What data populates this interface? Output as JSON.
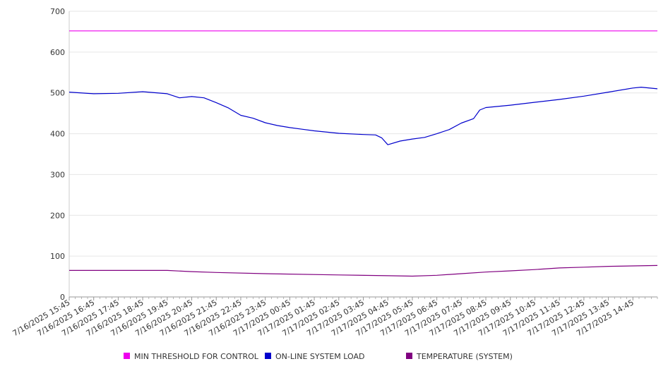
{
  "chart_data": {
    "type": "line",
    "title": "",
    "xlabel": "",
    "ylabel": "",
    "ylim": [
      0,
      700
    ],
    "yticks": [
      0,
      100,
      200,
      300,
      400,
      500,
      600,
      700
    ],
    "grid": true,
    "legend_position": "bottom",
    "x_tick_labels": [
      "7/16/2025 15:45",
      "7/16/2025 16:45",
      "7/16/2025 17:45",
      "7/16/2025 18:45",
      "7/16/2025 19:45",
      "7/16/2025 20:45",
      "7/16/2025 21:45",
      "7/16/2025 22:45",
      "7/16/2025 23:45",
      "7/17/2025 00:45",
      "7/17/2025 01:45",
      "7/17/2025 02:45",
      "7/17/2025 03:45",
      "7/17/2025 04:45",
      "7/17/2025 05:45",
      "7/17/2025 06:45",
      "7/17/2025 07:45",
      "7/17/2025 08:45",
      "7/17/2025 09:45",
      "7/17/2025 10:45",
      "7/17/2025 11:45",
      "7/17/2025 12:45",
      "7/17/2025 13:45",
      "7/17/2025 14:45"
    ],
    "x_range": [
      "7/16/2025 15:45",
      "7/17/2025 15:45"
    ],
    "series": [
      {
        "name": "MIN THRESHOLD FOR CONTROL",
        "color": "#ee00ee",
        "points": [
          [
            "7/16/2025 15:45",
            652
          ],
          [
            "7/17/2025 15:45",
            652
          ]
        ]
      },
      {
        "name": "ON-LINE SYSTEM LOAD",
        "color": "#0000cc",
        "points": [
          [
            "7/16/2025 15:45",
            502
          ],
          [
            "7/16/2025 16:45",
            498
          ],
          [
            "7/16/2025 17:45",
            499
          ],
          [
            "7/16/2025 18:45",
            503
          ],
          [
            "7/16/2025 19:45",
            498
          ],
          [
            "7/16/2025 20:15",
            488
          ],
          [
            "7/16/2025 20:45",
            491
          ],
          [
            "7/16/2025 21:15",
            488
          ],
          [
            "7/16/2025 21:45",
            476
          ],
          [
            "7/16/2025 22:15",
            463
          ],
          [
            "7/16/2025 22:45",
            445
          ],
          [
            "7/16/2025 23:15",
            438
          ],
          [
            "7/16/2025 23:45",
            427
          ],
          [
            "7/17/2025 00:15",
            420
          ],
          [
            "7/17/2025 00:45",
            415
          ],
          [
            "7/17/2025 01:15",
            411
          ],
          [
            "7/17/2025 01:45",
            407
          ],
          [
            "7/17/2025 02:45",
            401
          ],
          [
            "7/17/2025 03:45",
            398
          ],
          [
            "7/17/2025 04:15",
            397
          ],
          [
            "7/17/2025 04:30",
            390
          ],
          [
            "7/17/2025 04:45",
            373
          ],
          [
            "7/17/2025 05:15",
            382
          ],
          [
            "7/17/2025 05:45",
            387
          ],
          [
            "7/17/2025 06:15",
            391
          ],
          [
            "7/17/2025 06:45",
            400
          ],
          [
            "7/17/2025 07:15",
            410
          ],
          [
            "7/17/2025 07:45",
            426
          ],
          [
            "7/17/2025 08:15",
            437
          ],
          [
            "7/17/2025 08:30",
            458
          ],
          [
            "7/17/2025 08:45",
            464
          ],
          [
            "7/17/2025 09:45",
            470
          ],
          [
            "7/17/2025 10:45",
            477
          ],
          [
            "7/17/2025 11:45",
            484
          ],
          [
            "7/17/2025 12:45",
            492
          ],
          [
            "7/17/2025 13:45",
            502
          ],
          [
            "7/17/2025 14:45",
            512
          ],
          [
            "7/17/2025 15:05",
            514
          ],
          [
            "7/17/2025 15:45",
            510
          ]
        ]
      },
      {
        "name": "TEMPERATURE (SYSTEM)",
        "color": "#800080",
        "points": [
          [
            "7/16/2025 15:45",
            65
          ],
          [
            "7/16/2025 19:45",
            65
          ],
          [
            "7/16/2025 20:45",
            62
          ],
          [
            "7/16/2025 21:45",
            60
          ],
          [
            "7/16/2025 23:45",
            57
          ],
          [
            "7/17/2025 02:45",
            54
          ],
          [
            "7/17/2025 04:45",
            52
          ],
          [
            "7/17/2025 05:45",
            51
          ],
          [
            "7/17/2025 06:45",
            53
          ],
          [
            "7/17/2025 07:45",
            57
          ],
          [
            "7/17/2025 08:45",
            61
          ],
          [
            "7/17/2025 09:45",
            64
          ],
          [
            "7/17/2025 10:45",
            67
          ],
          [
            "7/17/2025 11:45",
            71
          ],
          [
            "7/17/2025 12:45",
            73
          ],
          [
            "7/17/2025 13:45",
            75
          ],
          [
            "7/17/2025 15:45",
            77
          ]
        ]
      }
    ]
  }
}
